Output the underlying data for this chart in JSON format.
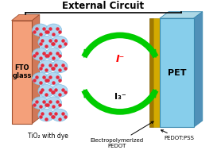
{
  "title": "External Circuit",
  "title_fontsize": 8.5,
  "bg_color": "#ffffff",
  "fto_glass_color": "#f4a07a",
  "tio2_blob_color": "#aad4f0",
  "tio2_blob_edge": "#7ab8e0",
  "dye_dot_color": "#e8283c",
  "pet_color_main": "#87ceeb",
  "arrow_color": "#00cc00",
  "label_fto": "FTO\nglass",
  "label_tio2": "TiO₂ with dye",
  "label_pet": "PET",
  "label_pedot_pss": "PEDOT:PSS",
  "label_electro": "Electropolymerized\nPEDOT",
  "label_I_minus": "I⁻",
  "label_I3_minus": "I₃⁻",
  "circuit_line_color": "#000000",
  "fig_w": 2.73,
  "fig_h": 1.89,
  "dpi": 100
}
